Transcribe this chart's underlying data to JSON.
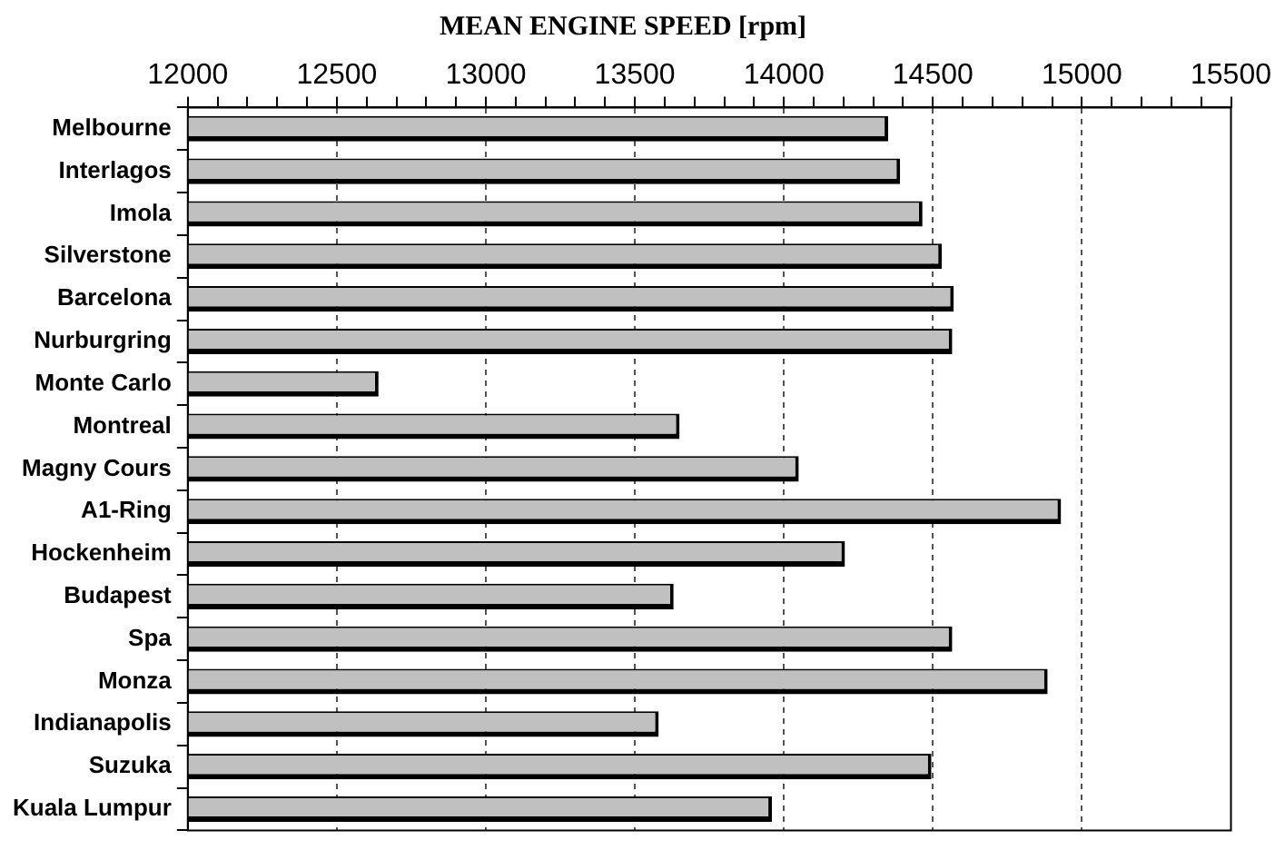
{
  "chart_data": {
    "type": "bar",
    "orientation": "horizontal",
    "title": "MEAN ENGINE SPEED [rpm]",
    "categories": [
      "Melbourne",
      "Interlagos",
      "Imola",
      "Silverstone",
      "Barcelona",
      "Nurburgring",
      "Monte Carlo",
      "Montreal",
      "Magny Cours",
      "A1-Ring",
      "Hockenheim",
      "Budapest",
      "Spa",
      "Monza",
      "Indianapolis",
      "Suzuka",
      "Kuala Lumpur"
    ],
    "values": [
      14350,
      14390,
      14465,
      14530,
      14570,
      14565,
      12640,
      13650,
      14050,
      14930,
      14205,
      13630,
      14565,
      14885,
      13580,
      14495,
      13960
    ],
    "color": "#c0c0c0",
    "xlim": [
      12000,
      15500
    ],
    "xticks": [
      12000,
      {
        "value": 12100,
        "label": null
      },
      {
        "value": 12200,
        "label": null
      },
      {
        "value": 12300,
        "label": null
      },
      {
        "value": 12400,
        "label": null
      },
      12500,
      {
        "value": 12600,
        "label": null
      },
      {
        "value": 12700,
        "label": null
      },
      {
        "value": 12800,
        "label": null
      },
      {
        "value": 12900,
        "label": null
      },
      13000,
      {
        "value": 13100,
        "label": null
      },
      {
        "value": 13200,
        "label": null
      },
      {
        "value": 13300,
        "label": null
      },
      {
        "value": 13400,
        "label": null
      },
      13500,
      {
        "value": 13600,
        "label": null
      },
      {
        "value": 13700,
        "label": null
      },
      {
        "value": 13800,
        "label": null
      },
      {
        "value": 13900,
        "label": null
      },
      14000,
      {
        "value": 14100,
        "label": null
      },
      {
        "value": 14200,
        "label": null
      },
      {
        "value": 14300,
        "label": null
      },
      {
        "value": 14400,
        "label": null
      },
      14500,
      {
        "value": 14600,
        "label": null
      },
      {
        "value": 14700,
        "label": null
      },
      {
        "value": 14800,
        "label": null
      },
      {
        "value": 14900,
        "label": null
      },
      15000,
      {
        "value": 15100,
        "label": null
      },
      {
        "value": 15200,
        "label": null
      },
      {
        "value": 15300,
        "label": null
      },
      {
        "value": 15400,
        "label": null
      },
      15500
    ],
    "grid": "x",
    "legend": false
  }
}
